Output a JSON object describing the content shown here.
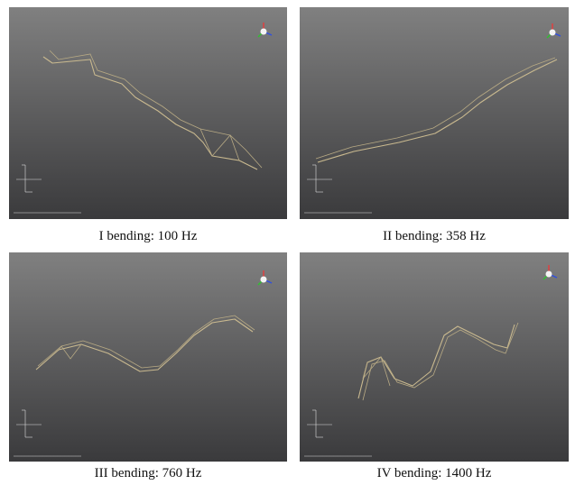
{
  "panels": [
    {
      "caption": "I bending: 100 Hz"
    },
    {
      "caption": "II bending: 358 Hz"
    },
    {
      "caption": "III bending: 760 Hz"
    },
    {
      "caption": "IV bending: 1400 Hz"
    }
  ]
}
